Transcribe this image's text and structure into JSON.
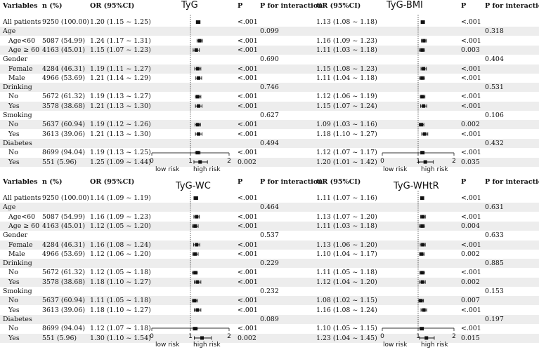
{
  "headers": {
    "variables": "Variables",
    "n_pct": "n (%)",
    "or_ci": "OR (95%CI)",
    "p": "P",
    "p_interaction": "P for interaction"
  },
  "risk_labels": {
    "low": "low risk",
    "high": "high risk"
  },
  "rows": [
    {
      "label": "All patients",
      "type": "row",
      "n": "9250 (100.00)"
    },
    {
      "label": "Age",
      "type": "group"
    },
    {
      "label": "Age<60",
      "type": "sub",
      "n": "5087 (54.99)"
    },
    {
      "label": "Age ≥ 60",
      "type": "sub",
      "n": "4163 (45.01)"
    },
    {
      "label": "Gender",
      "type": "group"
    },
    {
      "label": "Female",
      "type": "sub",
      "n": "4284 (46.31)"
    },
    {
      "label": "Male",
      "type": "sub",
      "n": "4966 (53.69)"
    },
    {
      "label": "Drinking",
      "type": "group"
    },
    {
      "label": "No",
      "type": "sub",
      "n": "5672 (61.32)"
    },
    {
      "label": "Yes",
      "type": "sub",
      "n": "3578 (38.68)"
    },
    {
      "label": "Smoking",
      "type": "group"
    },
    {
      "label": "No",
      "type": "sub",
      "n": "5637 (60.94)"
    },
    {
      "label": "Yes",
      "type": "sub",
      "n": "3613 (39.06)"
    },
    {
      "label": "Diabetes",
      "type": "group"
    },
    {
      "label": "No",
      "type": "sub",
      "n": "8699 (94.04)"
    },
    {
      "label": "Yes",
      "type": "sub",
      "n": "551 (5.96)"
    }
  ],
  "chart_data": [
    {
      "type": "forest",
      "title": "TyG",
      "xlim": [
        0,
        2
      ],
      "ticks": [
        0,
        1,
        2
      ],
      "reference_line": 1,
      "rows": [
        {
          "or": "1.20 (1.15 ~ 1.25)",
          "est": 1.2,
          "lo": 1.15,
          "hi": 1.25,
          "p": "<.001",
          "pint": ""
        },
        {
          "pint": "0.099"
        },
        {
          "or": "1.24 (1.17 ~ 1.31)",
          "est": 1.24,
          "lo": 1.17,
          "hi": 1.31,
          "p": "<.001",
          "pint": ""
        },
        {
          "or": "1.15 (1.07 ~ 1.23)",
          "est": 1.15,
          "lo": 1.07,
          "hi": 1.23,
          "p": "<.001",
          "pint": ""
        },
        {
          "pint": "0.690"
        },
        {
          "or": "1.19 (1.11 ~ 1.27)",
          "est": 1.19,
          "lo": 1.11,
          "hi": 1.27,
          "p": "<.001",
          "pint": ""
        },
        {
          "or": "1.21 (1.14 ~ 1.29)",
          "est": 1.21,
          "lo": 1.14,
          "hi": 1.29,
          "p": "<.001",
          "pint": ""
        },
        {
          "pint": "0.746"
        },
        {
          "or": "1.19 (1.13 ~ 1.27)",
          "est": 1.19,
          "lo": 1.13,
          "hi": 1.27,
          "p": "<.001",
          "pint": ""
        },
        {
          "or": "1.21 (1.13 ~ 1.30)",
          "est": 1.21,
          "lo": 1.13,
          "hi": 1.3,
          "p": "<.001",
          "pint": ""
        },
        {
          "pint": "0.627"
        },
        {
          "or": "1.19 (1.12 ~ 1.26)",
          "est": 1.19,
          "lo": 1.12,
          "hi": 1.26,
          "p": "<.001",
          "pint": ""
        },
        {
          "or": "1.21 (1.13 ~ 1.30)",
          "est": 1.21,
          "lo": 1.13,
          "hi": 1.3,
          "p": "<.001",
          "pint": ""
        },
        {
          "pint": "0.494"
        },
        {
          "or": "1.19 (1.13 ~ 1.25)",
          "est": 1.19,
          "lo": 1.13,
          "hi": 1.25,
          "p": "<.001",
          "pint": ""
        },
        {
          "or": "1.25 (1.09 ~ 1.44)",
          "est": 1.25,
          "lo": 1.09,
          "hi": 1.44,
          "p": "0.002",
          "pint": ""
        }
      ]
    },
    {
      "type": "forest",
      "title": "TyG-BMI",
      "xlim": [
        0,
        2
      ],
      "ticks": [
        0,
        1,
        2
      ],
      "reference_line": 1,
      "rows": [
        {
          "or": "1.13 (1.08 ~ 1.18)",
          "est": 1.13,
          "lo": 1.08,
          "hi": 1.18,
          "p": "<.001",
          "pint": ""
        },
        {
          "pint": "0.318"
        },
        {
          "or": "1.16 (1.09 ~ 1.23)",
          "est": 1.16,
          "lo": 1.09,
          "hi": 1.23,
          "p": "<.001",
          "pint": ""
        },
        {
          "or": "1.11 (1.03 ~ 1.18)",
          "est": 1.11,
          "lo": 1.03,
          "hi": 1.18,
          "p": "0.003",
          "pint": ""
        },
        {
          "pint": "0.404"
        },
        {
          "or": "1.15 (1.08 ~ 1.23)",
          "est": 1.15,
          "lo": 1.08,
          "hi": 1.23,
          "p": "<.001",
          "pint": ""
        },
        {
          "or": "1.11 (1.04 ~ 1.18)",
          "est": 1.11,
          "lo": 1.04,
          "hi": 1.18,
          "p": "<.001",
          "pint": ""
        },
        {
          "pint": "0.531"
        },
        {
          "or": "1.12 (1.06 ~ 1.19)",
          "est": 1.12,
          "lo": 1.06,
          "hi": 1.19,
          "p": "<.001",
          "pint": ""
        },
        {
          "or": "1.15 (1.07 ~ 1.24)",
          "est": 1.15,
          "lo": 1.07,
          "hi": 1.24,
          "p": "<.001",
          "pint": ""
        },
        {
          "pint": "0.106"
        },
        {
          "or": "1.09 (1.03 ~ 1.16)",
          "est": 1.09,
          "lo": 1.03,
          "hi": 1.16,
          "p": "0.002",
          "pint": ""
        },
        {
          "or": "1.18 (1.10 ~ 1.27)",
          "est": 1.18,
          "lo": 1.1,
          "hi": 1.27,
          "p": "<.001",
          "pint": ""
        },
        {
          "pint": "0.432"
        },
        {
          "or": "1.12 (1.07 ~ 1.17)",
          "est": 1.12,
          "lo": 1.07,
          "hi": 1.17,
          "p": "<.001",
          "pint": ""
        },
        {
          "or": "1.20 (1.01 ~ 1.42)",
          "est": 1.2,
          "lo": 1.01,
          "hi": 1.42,
          "p": "0.035",
          "pint": ""
        }
      ]
    },
    {
      "type": "forest",
      "title": "TyG-WC",
      "xlim": [
        0,
        2
      ],
      "ticks": [
        0,
        1,
        2
      ],
      "reference_line": 1,
      "rows": [
        {
          "or": "1.14 (1.09 ~ 1.19)",
          "est": 1.14,
          "lo": 1.09,
          "hi": 1.19,
          "p": "<.001",
          "pint": ""
        },
        {
          "pint": "0.464"
        },
        {
          "or": "1.16 (1.09 ~ 1.23)",
          "est": 1.16,
          "lo": 1.09,
          "hi": 1.23,
          "p": "<.001",
          "pint": ""
        },
        {
          "or": "1.12 (1.05 ~ 1.20)",
          "est": 1.12,
          "lo": 1.05,
          "hi": 1.2,
          "p": "<.001",
          "pint": ""
        },
        {
          "pint": "0.537"
        },
        {
          "or": "1.16 (1.08 ~ 1.24)",
          "est": 1.16,
          "lo": 1.08,
          "hi": 1.24,
          "p": "<.001",
          "pint": ""
        },
        {
          "or": "1.12 (1.06 ~ 1.20)",
          "est": 1.12,
          "lo": 1.06,
          "hi": 1.2,
          "p": "<.001",
          "pint": ""
        },
        {
          "pint": "0.229"
        },
        {
          "or": "1.12 (1.05 ~ 1.18)",
          "est": 1.12,
          "lo": 1.05,
          "hi": 1.18,
          "p": "<.001",
          "pint": ""
        },
        {
          "or": "1.18 (1.10 ~ 1.27)",
          "est": 1.18,
          "lo": 1.1,
          "hi": 1.27,
          "p": "<.001",
          "pint": ""
        },
        {
          "pint": "0.232"
        },
        {
          "or": "1.11 (1.05 ~ 1.18)",
          "est": 1.11,
          "lo": 1.05,
          "hi": 1.18,
          "p": "<.001",
          "pint": ""
        },
        {
          "or": "1.18 (1.10 ~ 1.27)",
          "est": 1.18,
          "lo": 1.1,
          "hi": 1.27,
          "p": "<.001",
          "pint": ""
        },
        {
          "pint": "0.089"
        },
        {
          "or": "1.12 (1.07 ~ 1.18)",
          "est": 1.12,
          "lo": 1.07,
          "hi": 1.18,
          "p": "<.001",
          "pint": ""
        },
        {
          "or": "1.30 (1.10 ~ 1.54)",
          "est": 1.3,
          "lo": 1.1,
          "hi": 1.54,
          "p": "0.002",
          "pint": ""
        }
      ]
    },
    {
      "type": "forest",
      "title": "TyG-WHtR",
      "xlim": [
        0,
        2
      ],
      "ticks": [
        0,
        1,
        2
      ],
      "reference_line": 1,
      "rows": [
        {
          "or": "1.11 (1.07 ~ 1.16)",
          "est": 1.11,
          "lo": 1.07,
          "hi": 1.16,
          "p": "<.001",
          "pint": ""
        },
        {
          "pint": "0.631"
        },
        {
          "or": "1.13 (1.07 ~ 1.20)",
          "est": 1.13,
          "lo": 1.07,
          "hi": 1.2,
          "p": "<.001",
          "pint": ""
        },
        {
          "or": "1.11 (1.03 ~ 1.18)",
          "est": 1.11,
          "lo": 1.03,
          "hi": 1.18,
          "p": "0.004",
          "pint": ""
        },
        {
          "pint": "0.633"
        },
        {
          "or": "1.13 (1.06 ~ 1.20)",
          "est": 1.13,
          "lo": 1.06,
          "hi": 1.2,
          "p": "<.001",
          "pint": ""
        },
        {
          "or": "1.10 (1.04 ~ 1.17)",
          "est": 1.1,
          "lo": 1.04,
          "hi": 1.17,
          "p": "0.002",
          "pint": ""
        },
        {
          "pint": "0.885"
        },
        {
          "or": "1.11 (1.05 ~ 1.18)",
          "est": 1.11,
          "lo": 1.05,
          "hi": 1.18,
          "p": "<.001",
          "pint": ""
        },
        {
          "or": "1.12 (1.04 ~ 1.20)",
          "est": 1.12,
          "lo": 1.04,
          "hi": 1.2,
          "p": "0.002",
          "pint": ""
        },
        {
          "pint": "0.153"
        },
        {
          "or": "1.08 (1.02 ~ 1.15)",
          "est": 1.08,
          "lo": 1.02,
          "hi": 1.15,
          "p": "0.007",
          "pint": ""
        },
        {
          "or": "1.16 (1.08 ~ 1.24)",
          "est": 1.16,
          "lo": 1.08,
          "hi": 1.24,
          "p": "<.001",
          "pint": ""
        },
        {
          "pint": "0.197"
        },
        {
          "or": "1.10 (1.05 ~ 1.15)",
          "est": 1.1,
          "lo": 1.05,
          "hi": 1.15,
          "p": "<.001",
          "pint": ""
        },
        {
          "or": "1.23 (1.04 ~ 1.45)",
          "est": 1.23,
          "lo": 1.04,
          "hi": 1.45,
          "p": "0.015",
          "pint": ""
        }
      ]
    }
  ]
}
